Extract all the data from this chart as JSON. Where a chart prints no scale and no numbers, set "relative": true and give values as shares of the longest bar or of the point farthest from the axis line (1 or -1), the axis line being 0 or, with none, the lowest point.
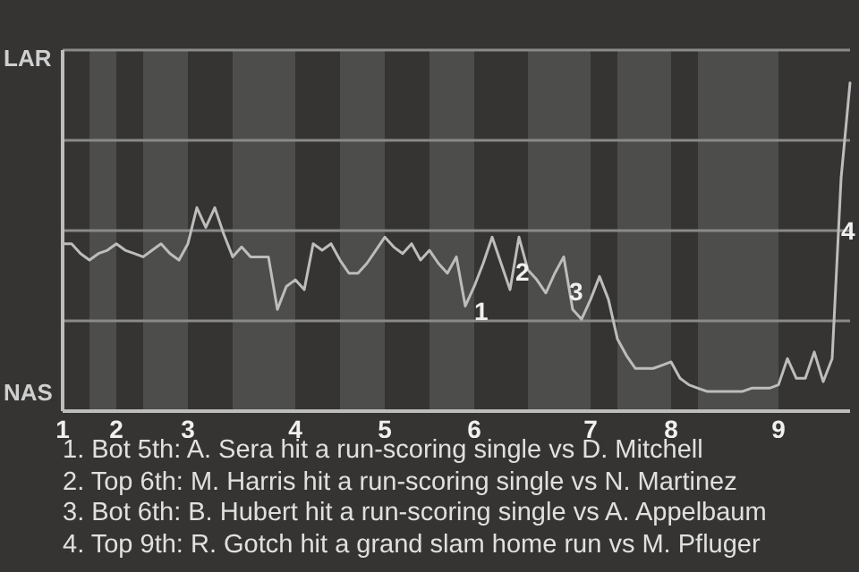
{
  "chart_data": {
    "type": "line",
    "relative": true,
    "categories": [
      "1",
      null,
      null,
      null,
      null,
      null,
      "2",
      null,
      null,
      null,
      null,
      null,
      null,
      null,
      "3",
      null,
      null,
      null,
      null,
      null,
      null,
      null,
      null,
      null,
      null,
      null,
      "4",
      null,
      null,
      null,
      null,
      null,
      null,
      null,
      null,
      null,
      "5",
      null,
      null,
      null,
      null,
      null,
      null,
      null,
      null,
      null,
      "6",
      null,
      null,
      null,
      null,
      null,
      null,
      null,
      null,
      null,
      null,
      null,
      null,
      "7",
      null,
      null,
      null,
      null,
      null,
      null,
      null,
      null,
      "8",
      null,
      null,
      null,
      null,
      null,
      null,
      null,
      null,
      null,
      null,
      null,
      "9",
      null,
      null,
      null,
      null,
      null,
      null,
      null,
      null
    ],
    "series": [
      {
        "color": "#bdbdbd",
        "values": [
          0.51,
          0.51,
          0.48,
          0.46,
          0.48,
          0.49,
          0.51,
          0.49,
          0.48,
          0.47,
          0.49,
          0.51,
          0.48,
          0.46,
          0.51,
          0.62,
          0.56,
          0.62,
          0.54,
          0.47,
          0.5,
          0.47,
          0.47,
          0.47,
          0.31,
          0.38,
          0.4,
          0.37,
          0.51,
          0.49,
          0.51,
          0.46,
          0.42,
          0.42,
          0.45,
          0.49,
          0.53,
          0.5,
          0.48,
          0.51,
          0.46,
          0.49,
          0.45,
          0.42,
          0.47,
          0.32,
          0.38,
          0.45,
          0.53,
          0.45,
          0.37,
          0.53,
          0.43,
          0.4,
          0.36,
          0.42,
          0.47,
          0.31,
          0.28,
          0.34,
          0.41,
          0.34,
          0.22,
          0.17,
          0.13,
          0.13,
          0.13,
          0.14,
          0.15,
          0.1,
          0.08,
          0.07,
          0.06,
          0.06,
          0.06,
          0.06,
          0.06,
          0.07,
          0.07,
          0.07,
          0.08,
          0.16,
          0.1,
          0.1,
          0.18,
          0.09,
          0.16,
          0.71,
          1
        ]
      }
    ],
    "grid": "y",
    "annotations": [
      "LAR",
      "NAS",
      "1",
      "2",
      "3",
      "4",
      "1. Bot 5th: A. Sera hit a run-scoring single vs D. Mitchell",
      "2. Top 6th: M. Harris hit a run-scoring single vs N. Martinez",
      "3. Bot 6th: B. Hubert hit a run-scoring single vs A. Appelbaum",
      "4. Top 9th: R. Gotch hit a grand slam home run vs M. Pfluger"
    ]
  }
}
